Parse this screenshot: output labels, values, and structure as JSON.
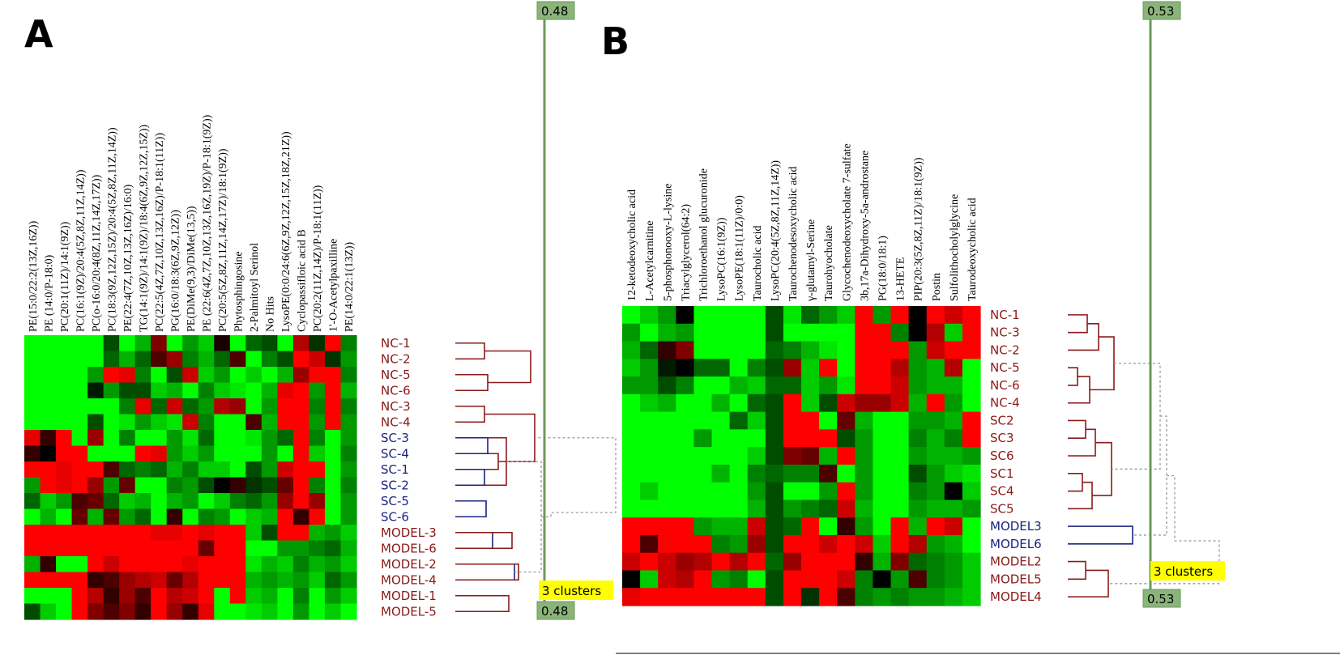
{
  "chart_data": [
    {
      "type": "heatmap",
      "panel": "A",
      "columns": [
        "PE(15:0/22:2(13Z,16Z))",
        "PE (14:0/P-18:0)",
        "PC(20:1(11Z)/14:1(9Z))",
        "PC(16:1(9Z)/20:4(5Z,8Z,11Z,14Z))",
        "PC(o-16:0/20:4(8Z,11Z,14Z,17Z))",
        "PC(18:3(9Z,12Z,15Z)/20:4(5Z,8Z,11Z,14Z))",
        "PE(22:4(7Z,10Z,13Z,16Z)/16:0)",
        "TG(14:1(9Z)/14:1(9Z)/18:4(6Z,9Z,12Z,15Z))",
        "PC(22:5(4Z,7Z,10Z,13Z,16Z)/P-18:1(11Z))",
        "PG(16:0/18:3(6Z,9Z,12Z))",
        "PE(DiMe(9,3)/DiMe(13,5))",
        "PE (22:6(4Z,7Z,10Z,13Z,16Z,19Z)/P-18:1(9Z))",
        "PC(20:5(5Z,8Z,11Z,14Z,17Z)/18:1(9Z))",
        "Phytosphingosine",
        "2-Palmitoyl Serinol",
        "No Hits",
        "LysoPE(0:0/24:6(6Z,9Z,12Z,15Z,18Z,21Z))",
        "Cyclopassifloic acid B",
        "PC(20:2(11Z,14Z)/P-18:1(11Z))",
        "1'-O-Acetylpaxilline",
        "PE(14:0/22:1(13Z))"
      ],
      "rows": [
        "NC-1",
        "NC-2",
        "NC-5",
        "NC-6",
        "NC-3",
        "NC-4",
        "SC-3",
        "SC-4",
        "SC-1",
        "SC-2",
        "SC-5",
        "SC-6",
        "MODEL-3",
        "MODEL-6",
        "MODEL-2",
        "MODEL-4",
        "MODEL-1",
        "MODEL-5"
      ],
      "row_groups": [
        "NC",
        "NC",
        "NC",
        "NC",
        "NC",
        "NC",
        "SC",
        "SC",
        "SC",
        "SC",
        "SC",
        "SC",
        "MODEL",
        "MODEL",
        "MODEL",
        "MODEL",
        "MODEL",
        "MODEL"
      ],
      "values": [
        [
          -1,
          -1,
          -1,
          -1,
          -1,
          -0.3,
          -1,
          -0.7,
          0.5,
          -1,
          -0.6,
          -0.8,
          0.1,
          -1,
          -0.4,
          -0.3,
          -1,
          0.7,
          -0.2,
          1,
          -0.5
        ],
        [
          -1,
          -1,
          -1,
          -1,
          -1,
          -0.4,
          -0.7,
          -0.4,
          0.3,
          0.6,
          -0.5,
          -0.7,
          -0.4,
          0.3,
          -1,
          -0.5,
          -0.3,
          1,
          0.8,
          -0.2,
          -0.6
        ],
        [
          -1,
          -1,
          -1,
          -1,
          -0.6,
          1,
          0.9,
          -0.5,
          -1,
          -0.3,
          0.8,
          -0.8,
          -0.6,
          -1,
          -0.8,
          -1,
          -0.7,
          0.6,
          1,
          1,
          -0.5
        ],
        [
          -1,
          -1,
          -1,
          -1,
          -0.1,
          -0.6,
          -0.3,
          -0.3,
          -0.8,
          -0.7,
          -1,
          -0.5,
          -0.8,
          -0.9,
          -1,
          -0.7,
          0.9,
          1,
          -0.6,
          1,
          -0.7
        ],
        [
          -1,
          -1,
          -1,
          -1,
          -1,
          -1,
          -0.5,
          0.9,
          -0.4,
          0.8,
          -0.4,
          -0.6,
          0.7,
          0.6,
          -1,
          -0.6,
          1,
          1,
          -0.5,
          1,
          -0.5
        ],
        [
          -1,
          -1,
          -1,
          -1,
          -0.3,
          -1,
          -0.9,
          -0.6,
          -0.8,
          -0.9,
          0.8,
          -0.5,
          -1,
          -1,
          0.3,
          -0.7,
          1,
          1,
          -0.6,
          1,
          -0.6
        ],
        [
          0.9,
          0.2,
          1,
          -1,
          0.6,
          -1,
          -0.5,
          -1,
          -1,
          -0.6,
          -0.9,
          -0.4,
          -1,
          -1,
          -0.9,
          -0.6,
          -0.4,
          1,
          -0.5,
          -1,
          -0.6
        ],
        [
          0.2,
          0,
          1,
          1,
          -1,
          -1,
          -1,
          1,
          0.9,
          -0.6,
          -0.8,
          -0.6,
          -1,
          -1,
          -1,
          -0.6,
          -1,
          1,
          -0.8,
          -1,
          -0.5
        ],
        [
          1,
          1,
          0.9,
          1,
          1,
          0.3,
          -0.4,
          -0.5,
          -0.4,
          -0.7,
          -0.5,
          -0.8,
          -0.8,
          -1,
          -0.3,
          -0.6,
          0.8,
          1,
          1,
          -1,
          -0.6
        ],
        [
          -0.6,
          1,
          0.9,
          1,
          0.6,
          -0.6,
          0.4,
          -1,
          -1,
          -0.5,
          -0.6,
          -0.3,
          0,
          0.2,
          -0.2,
          -0.3,
          0.4,
          1,
          -0.5,
          -1,
          -0.5
        ],
        [
          -0.4,
          -0.8,
          -0.6,
          0.3,
          0.4,
          -0.4,
          -0.8,
          -0.7,
          -1,
          -0.7,
          -0.6,
          -1,
          -0.8,
          -0.5,
          -0.4,
          -0.6,
          0.6,
          1,
          0.6,
          -1,
          -0.6
        ],
        [
          -1,
          -0.7,
          -1,
          0.4,
          -0.7,
          0.4,
          -0.6,
          -0.4,
          -1,
          0.2,
          -1,
          -0.5,
          -0.6,
          -1,
          -0.8,
          -0.7,
          1,
          0.2,
          1,
          -1,
          -0.6
        ],
        [
          1,
          1,
          1,
          1,
          1,
          1,
          1,
          1,
          0.9,
          0.9,
          1,
          0.9,
          1,
          1,
          -0.8,
          -0.3,
          1,
          1,
          -0.7,
          -0.6,
          -0.8
        ],
        [
          1,
          1,
          1,
          1,
          1,
          1,
          1,
          1,
          1,
          1,
          1,
          0.4,
          1,
          1,
          -1,
          -1,
          -0.6,
          -0.6,
          -0.5,
          -0.4,
          -0.7
        ],
        [
          -0.7,
          0.2,
          -1,
          -1,
          1,
          0.8,
          1,
          1,
          1,
          1,
          0.9,
          1,
          1,
          1,
          -0.9,
          -0.7,
          -0.8,
          -0.5,
          -0.7,
          -0.6,
          -0.8
        ],
        [
          1,
          1,
          1,
          1,
          0.2,
          0.3,
          0.6,
          0.7,
          0.8,
          0.4,
          0.7,
          1,
          1,
          1,
          -0.7,
          -0.6,
          -0.7,
          -0.6,
          -0.8,
          -0.4,
          -0.6
        ],
        [
          -1,
          -1,
          -1,
          1,
          0.7,
          0.2,
          0.6,
          0.3,
          1,
          0.7,
          0.8,
          1,
          -1,
          1,
          -0.8,
          -0.7,
          -1,
          -0.5,
          -1,
          -0.6,
          -0.8
        ],
        [
          -0.3,
          -0.8,
          -1,
          1,
          0.5,
          0.3,
          0.5,
          0.2,
          1,
          0.6,
          0.2,
          0.9,
          -1,
          -1,
          -0.9,
          -0.8,
          -1,
          -0.6,
          -1,
          -0.8,
          -1
        ]
      ],
      "clusters_label": "3 clusters",
      "slider_top": "0.48",
      "slider_bottom": "0.48"
    },
    {
      "type": "heatmap",
      "panel": "B",
      "columns": [
        "12-ketodeoxycholic acid",
        "L-Acetylcarnitine",
        "5-phosphonooxy-L-lysine",
        "Triacylglycerol(64:2)",
        "Trichloroethanol glucuronide",
        "LysoPC(16:1(9Z))",
        "LysoPE(18:1(11Z)/0:0)",
        "Taurocholic acid",
        "LysoPC(20:4(5Z,8Z,11Z,14Z))",
        "Taurochenodesoxycholic acid",
        "γ-glutamyl-Serine",
        "Taurohyocholate",
        "Glycochenodeoxycholate 7-sulfate",
        "3b,17a-Dihydroxy-5a-androstane",
        "PG(18:0/18:1)",
        "13-HETE",
        "PIP(20:3(5Z,8Z,11Z)/18:1(9Z))",
        "Postin",
        "Sulfolithocholylglycine",
        "Taurodeoxycholic acid"
      ],
      "rows": [
        "NC-1",
        "NC-3",
        "NC-2",
        "NC-5",
        "NC-6",
        "NC-4",
        "SC2",
        "SC3",
        "SC6",
        "SC1",
        "SC4",
        "SC5",
        "MODEL3",
        "MODEL6",
        "MODEL2",
        "MODEL5",
        "MODEL4"
      ],
      "row_groups": [
        "NC",
        "NC",
        "NC",
        "NC",
        "NC",
        "NC",
        "SC",
        "SC",
        "SC",
        "SC",
        "SC",
        "SC",
        "MODEL",
        "MODEL",
        "MODEL",
        "MODEL",
        "MODEL"
      ],
      "values": [
        [
          -1,
          -0.8,
          -0.6,
          0,
          -1,
          -1,
          -1,
          -1,
          -0.3,
          -0.9,
          -0.4,
          -0.6,
          -0.8,
          1,
          -0.6,
          1,
          0,
          1,
          0.8,
          1
        ],
        [
          -0.6,
          -1,
          -0.7,
          -0.6,
          -1,
          -1,
          -1,
          -1,
          -0.3,
          -1,
          -1,
          -1,
          -1,
          1,
          1,
          -0.5,
          0,
          0.7,
          -0.8,
          1
        ],
        [
          -0.7,
          -0.4,
          0.2,
          0.5,
          -1,
          -1,
          -1,
          -1,
          -0.4,
          -0.5,
          -0.7,
          -0.9,
          -1,
          1,
          1,
          1,
          -0.6,
          0.8,
          1,
          1
        ],
        [
          -0.8,
          -0.6,
          -0.1,
          0,
          -0.4,
          -0.4,
          -1,
          -0.5,
          -0.3,
          0.6,
          -0.8,
          1,
          -1,
          1,
          1,
          0.7,
          -0.6,
          -0.7,
          0.7,
          -1
        ],
        [
          -0.6,
          -0.6,
          -0.3,
          -0.5,
          -1,
          -1,
          -0.7,
          -0.8,
          -0.4,
          -0.4,
          -0.8,
          -0.6,
          -0.9,
          1,
          1,
          0.8,
          -0.6,
          -0.7,
          -0.7,
          -1
        ],
        [
          -1,
          -0.8,
          -0.7,
          -1,
          -1,
          -0.7,
          -1,
          -0.4,
          -0.3,
          1,
          -0.8,
          -0.3,
          0.8,
          0.6,
          0.6,
          0.8,
          -0.7,
          1,
          -0.6,
          -1
        ],
        [
          -1,
          -1,
          -1,
          -1,
          -1,
          -1,
          -0.4,
          -0.8,
          -0.3,
          1,
          1,
          -1,
          0.4,
          -0.7,
          -1,
          -1,
          -0.6,
          -0.6,
          -0.7,
          1
        ],
        [
          -1,
          -1,
          -1,
          -1,
          -0.6,
          -1,
          -1,
          -1,
          -0.3,
          1,
          1,
          1,
          -0.3,
          -0.6,
          -1,
          -1,
          -0.5,
          -0.7,
          -0.5,
          1
        ],
        [
          -1,
          -1,
          -1,
          -1,
          -1,
          -1,
          -1,
          -0.8,
          -0.3,
          0.5,
          0.4,
          -0.7,
          1,
          -0.6,
          -1,
          -1,
          -0.6,
          -0.7,
          -0.7,
          -0.6
        ],
        [
          -1,
          -1,
          -1,
          -1,
          -1,
          -0.7,
          -1,
          -0.5,
          -0.4,
          -0.5,
          -0.5,
          0.3,
          -1,
          -0.6,
          -1,
          -1,
          -0.3,
          -0.6,
          -0.8,
          -0.9
        ],
        [
          -1,
          -0.8,
          -1,
          -1,
          -1,
          -1,
          -1,
          -0.6,
          -0.3,
          -1,
          -1,
          -0.6,
          1,
          -0.6,
          -1,
          -1,
          -0.5,
          -0.6,
          0,
          -0.8
        ],
        [
          -1,
          -1,
          -1,
          -1,
          -1,
          -1,
          -1,
          -0.7,
          -0.3,
          -0.6,
          -0.5,
          -0.4,
          0.8,
          -0.7,
          -1,
          -1,
          -0.6,
          -0.7,
          -0.7,
          -0.6
        ],
        [
          1,
          1,
          1,
          1,
          -0.6,
          -0.7,
          -0.7,
          0.8,
          -0.3,
          -0.4,
          1,
          -1,
          0.2,
          -0.6,
          -1,
          1,
          -0.7,
          1,
          0.8,
          -1
        ],
        [
          1,
          0.3,
          1,
          1,
          1,
          -0.5,
          -0.6,
          0.6,
          -0.3,
          1,
          1,
          0.8,
          1,
          0.8,
          -0.8,
          1,
          0.7,
          -0.6,
          -0.7,
          -1
        ],
        [
          0.8,
          1,
          0.8,
          0.6,
          0.7,
          1,
          0.7,
          1,
          -0.4,
          0.6,
          1,
          1,
          1,
          0.2,
          -0.7,
          0.5,
          -0.4,
          -0.5,
          -0.6,
          -0.8
        ],
        [
          0,
          -0.8,
          0.8,
          0.7,
          1,
          -0.6,
          -0.5,
          -1,
          -0.3,
          1,
          1,
          1,
          0.8,
          -0.5,
          0,
          -0.6,
          0.3,
          -0.5,
          -0.6,
          -0.8
        ],
        [
          0.9,
          1,
          1,
          1,
          1,
          1,
          1,
          1,
          -0.3,
          1,
          -0.2,
          1,
          0.3,
          -0.5,
          -0.6,
          -0.5,
          -0.6,
          -0.6,
          -0.7,
          -0.8
        ]
      ],
      "clusters_label": "3 clusters",
      "slider_top": "0.53",
      "slider_bottom": "0.53"
    }
  ],
  "colors": {
    "high": "#ff0000",
    "low": "#00ff00",
    "mid": "#000000",
    "NC": "#8b1a1a",
    "SC_A": "#1a237e",
    "SC_B": "#8b1a1a",
    "MODEL_A": "#8b1a1a",
    "MODEL_B3": "#1a237e",
    "slider_line": "#6b9a5a",
    "slider_box": "#8ab47a",
    "cluster_box": "#ffff00"
  }
}
